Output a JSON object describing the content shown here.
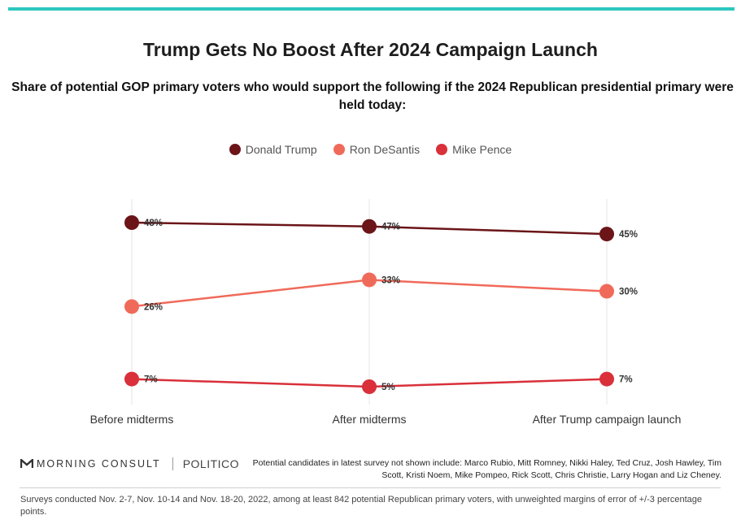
{
  "header": {
    "title": "Trump Gets No Boost After 2024 Campaign Launch",
    "subtitle": "Share of potential GOP primary voters who would support the following if the 2024 Republican presidential primary were held today:"
  },
  "chart_data": {
    "type": "line",
    "title": "Trump Gets No Boost After 2024 Campaign Launch",
    "categories": [
      "Before midterms",
      "After midterms",
      "After Trump campaign launch"
    ],
    "series": [
      {
        "name": "Donald Trump",
        "values": [
          48,
          47,
          45
        ],
        "labels": [
          "48%",
          "47%",
          "45%"
        ],
        "color": "#6b1518"
      },
      {
        "name": "Ron DeSantis",
        "values": [
          26,
          33,
          30
        ],
        "labels": [
          "26%",
          "33%",
          "30%"
        ],
        "color": "#f06a5a"
      },
      {
        "name": "Mike Pence",
        "values": [
          7,
          5,
          7
        ],
        "labels": [
          "7%",
          "5%",
          "7%"
        ],
        "color": "#d9303a"
      }
    ],
    "ylim": [
      5,
      48
    ],
    "legend_position": "top",
    "grid": "vertical"
  },
  "branding": {
    "morning_consult": "MORNING CONSULT",
    "politico": "POLITICO"
  },
  "note": "Potential candidates in latest survey not shown include: Marco Rubio, Mitt Romney, Nikki Haley, Ted Cruz, Josh Hawley, Tim Scott, Kristi Noem, Mike Pompeo, Rick Scott, Chris Christie, Larry Hogan and Liz Cheney.",
  "footer": "Surveys conducted Nov. 2-7, Nov. 10-14 and Nov. 18-20, 2022, among at least 842 potential Republican primary voters, with unweighted margins of error of +/-3 percentage points."
}
